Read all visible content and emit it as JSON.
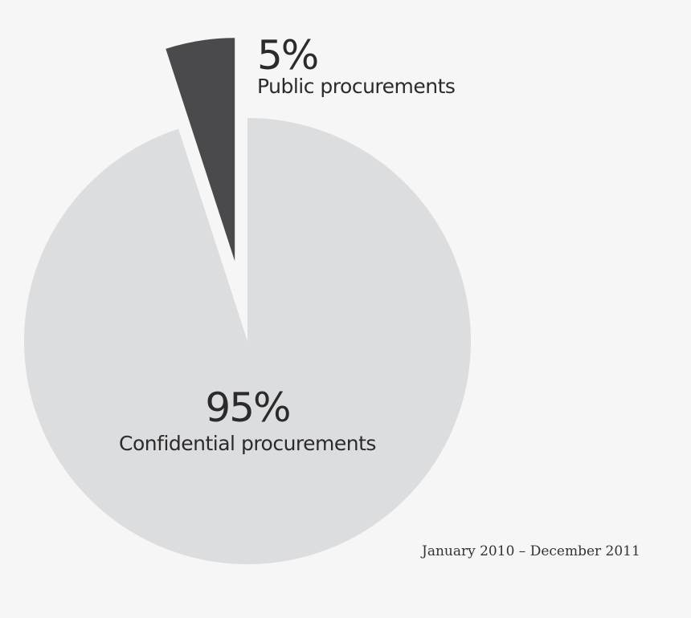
{
  "chart_data": {
    "type": "pie",
    "title": "",
    "slices": [
      {
        "label": "Public procurements",
        "value": 5,
        "value_label": "5%",
        "color": "#4a4a4c",
        "exploded": true
      },
      {
        "label": "Confidential procurements",
        "value": 95,
        "value_label": "95%",
        "color": "#dcdddf",
        "exploded": false
      }
    ],
    "start_angle": "top, clockwise; public slice immediately left of 12 o'clock",
    "legend": "none (direct labels)",
    "annotation": "January 2010 – December 2011"
  },
  "background": "#f6f6f6"
}
